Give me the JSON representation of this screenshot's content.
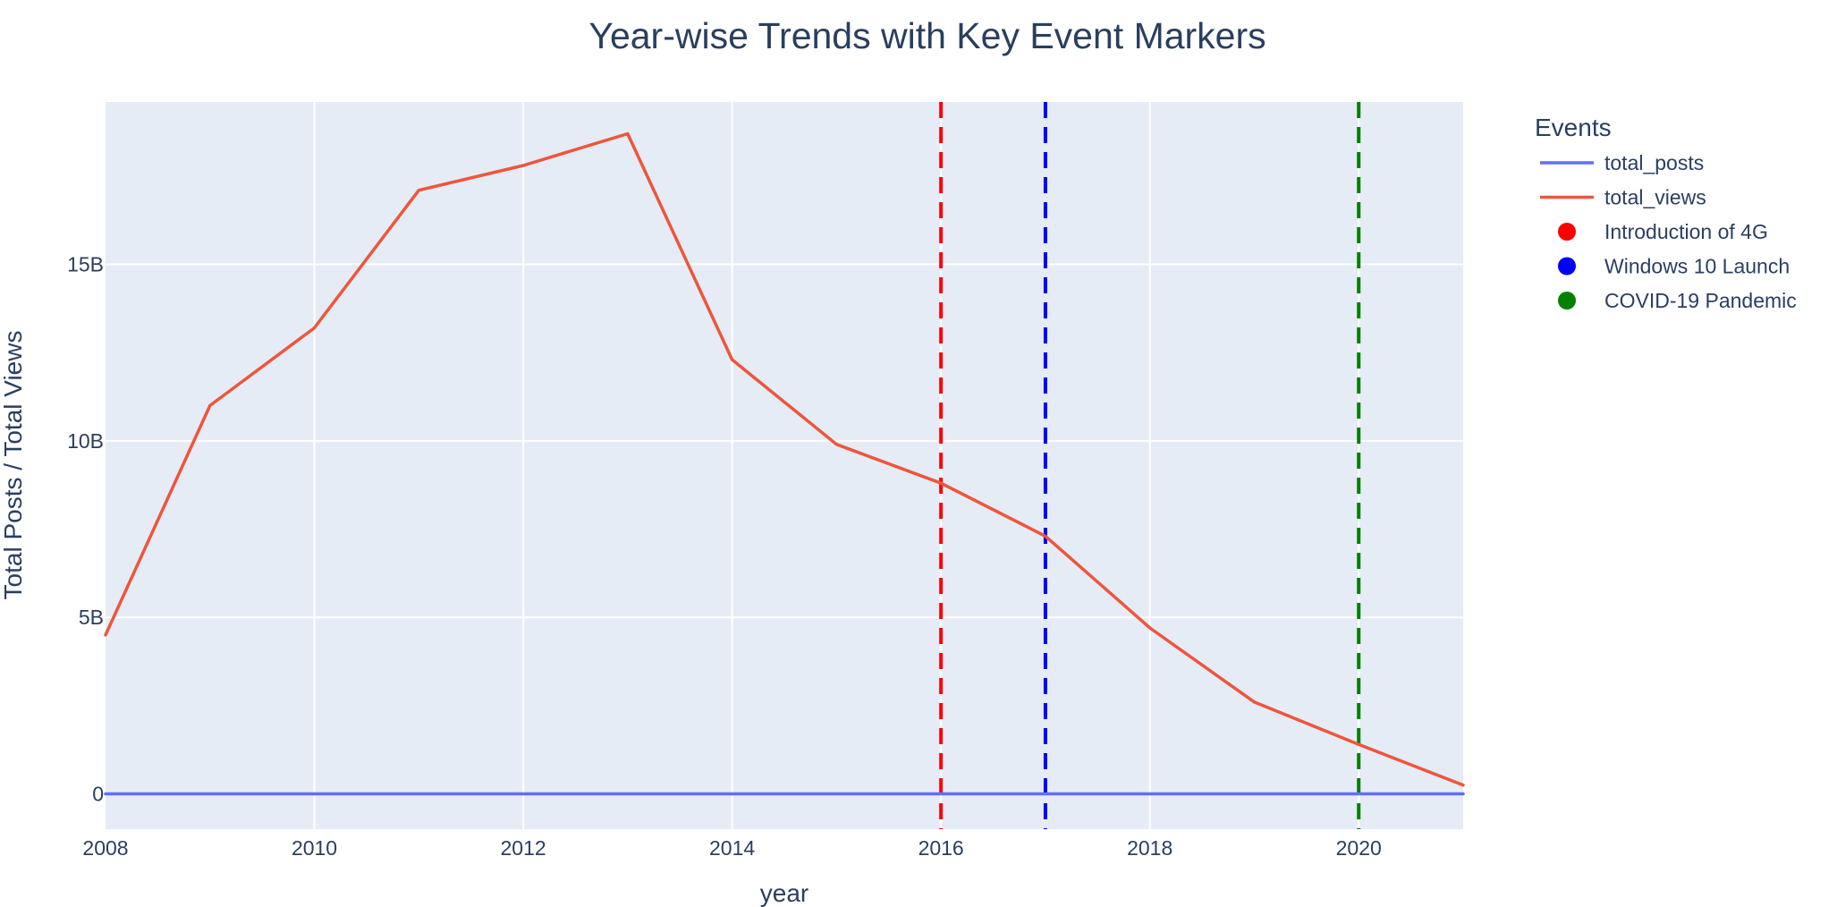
{
  "chart_data": {
    "type": "line",
    "title": "Year-wise Trends with Key Event Markers",
    "xlabel": "year",
    "ylabel": "Total Posts / Total Views",
    "xlim": [
      2008,
      2021
    ],
    "ylim": [
      -1.0,
      19.6
    ],
    "x_ticks": [
      2008,
      2010,
      2012,
      2014,
      2016,
      2018,
      2020
    ],
    "y_ticks": [
      {
        "value": 0,
        "label": "0"
      },
      {
        "value": 5,
        "label": "5B"
      },
      {
        "value": 10,
        "label": "10B"
      },
      {
        "value": 15,
        "label": "15B"
      }
    ],
    "y_unit": "billions",
    "grid": true,
    "legend_title": "Events",
    "legend_placement": "top-right",
    "x": [
      2008,
      2009,
      2010,
      2011,
      2012,
      2013,
      2014,
      2015,
      2016,
      2017,
      2018,
      2019,
      2020,
      2021
    ],
    "series": [
      {
        "name": "total_posts",
        "color": "#636efa",
        "values": [
          0.0,
          0.0,
          0.0,
          0.0,
          0.0,
          0.0,
          0.0,
          0.0,
          0.0,
          0.0,
          0.0,
          0.0,
          0.0,
          0.0
        ]
      },
      {
        "name": "total_views",
        "color": "#ef553b",
        "values": [
          4.5,
          11.0,
          13.2,
          17.1,
          17.8,
          18.7,
          12.3,
          9.9,
          8.8,
          7.3,
          4.7,
          2.6,
          1.4,
          0.25
        ]
      }
    ],
    "events": [
      {
        "name": "Introduction of 4G",
        "x": 2016,
        "color": "#ff0000"
      },
      {
        "name": "Windows 10 Launch",
        "x": 2017,
        "color": "#0000ff"
      },
      {
        "name": "COVID-19 Pandemic",
        "x": 2020,
        "color": "#008000"
      }
    ]
  }
}
